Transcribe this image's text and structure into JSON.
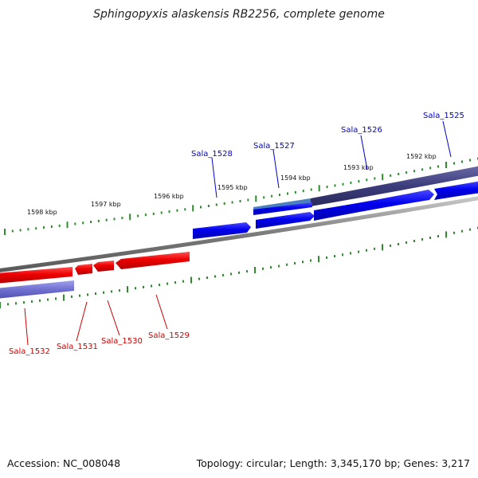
{
  "title": "Sphingopyxis alaskensis RB2256, complete genome",
  "accession": "Accession: NC_008048",
  "summary": "Topology: circular; Length: 3,345,170 bp; Genes: 3,217",
  "colors": {
    "backbone": "#808080",
    "ticks": "#2e8b2e",
    "forward_gene": "#0000ee",
    "reverse_gene": "#ee0000",
    "forward_label": "#0000cc",
    "reverse_label": "#cc0000",
    "outer_band": "#3c3c7c",
    "outer_band_light": "#4a80c0",
    "inner_band": "#7070d0"
  },
  "kbp_labels": [
    "1592 kbp",
    "1593 kbp",
    "1594 kbp",
    "1595 kbp",
    "1596 kbp",
    "1597 kbp",
    "1598 kbp"
  ],
  "forward_genes": [
    "Sala_1525",
    "Sala_1526",
    "Sala_1527",
    "Sala_1528"
  ],
  "reverse_genes": [
    "Sala_1529",
    "Sala_1530",
    "Sala_1531",
    "Sala_1532"
  ]
}
